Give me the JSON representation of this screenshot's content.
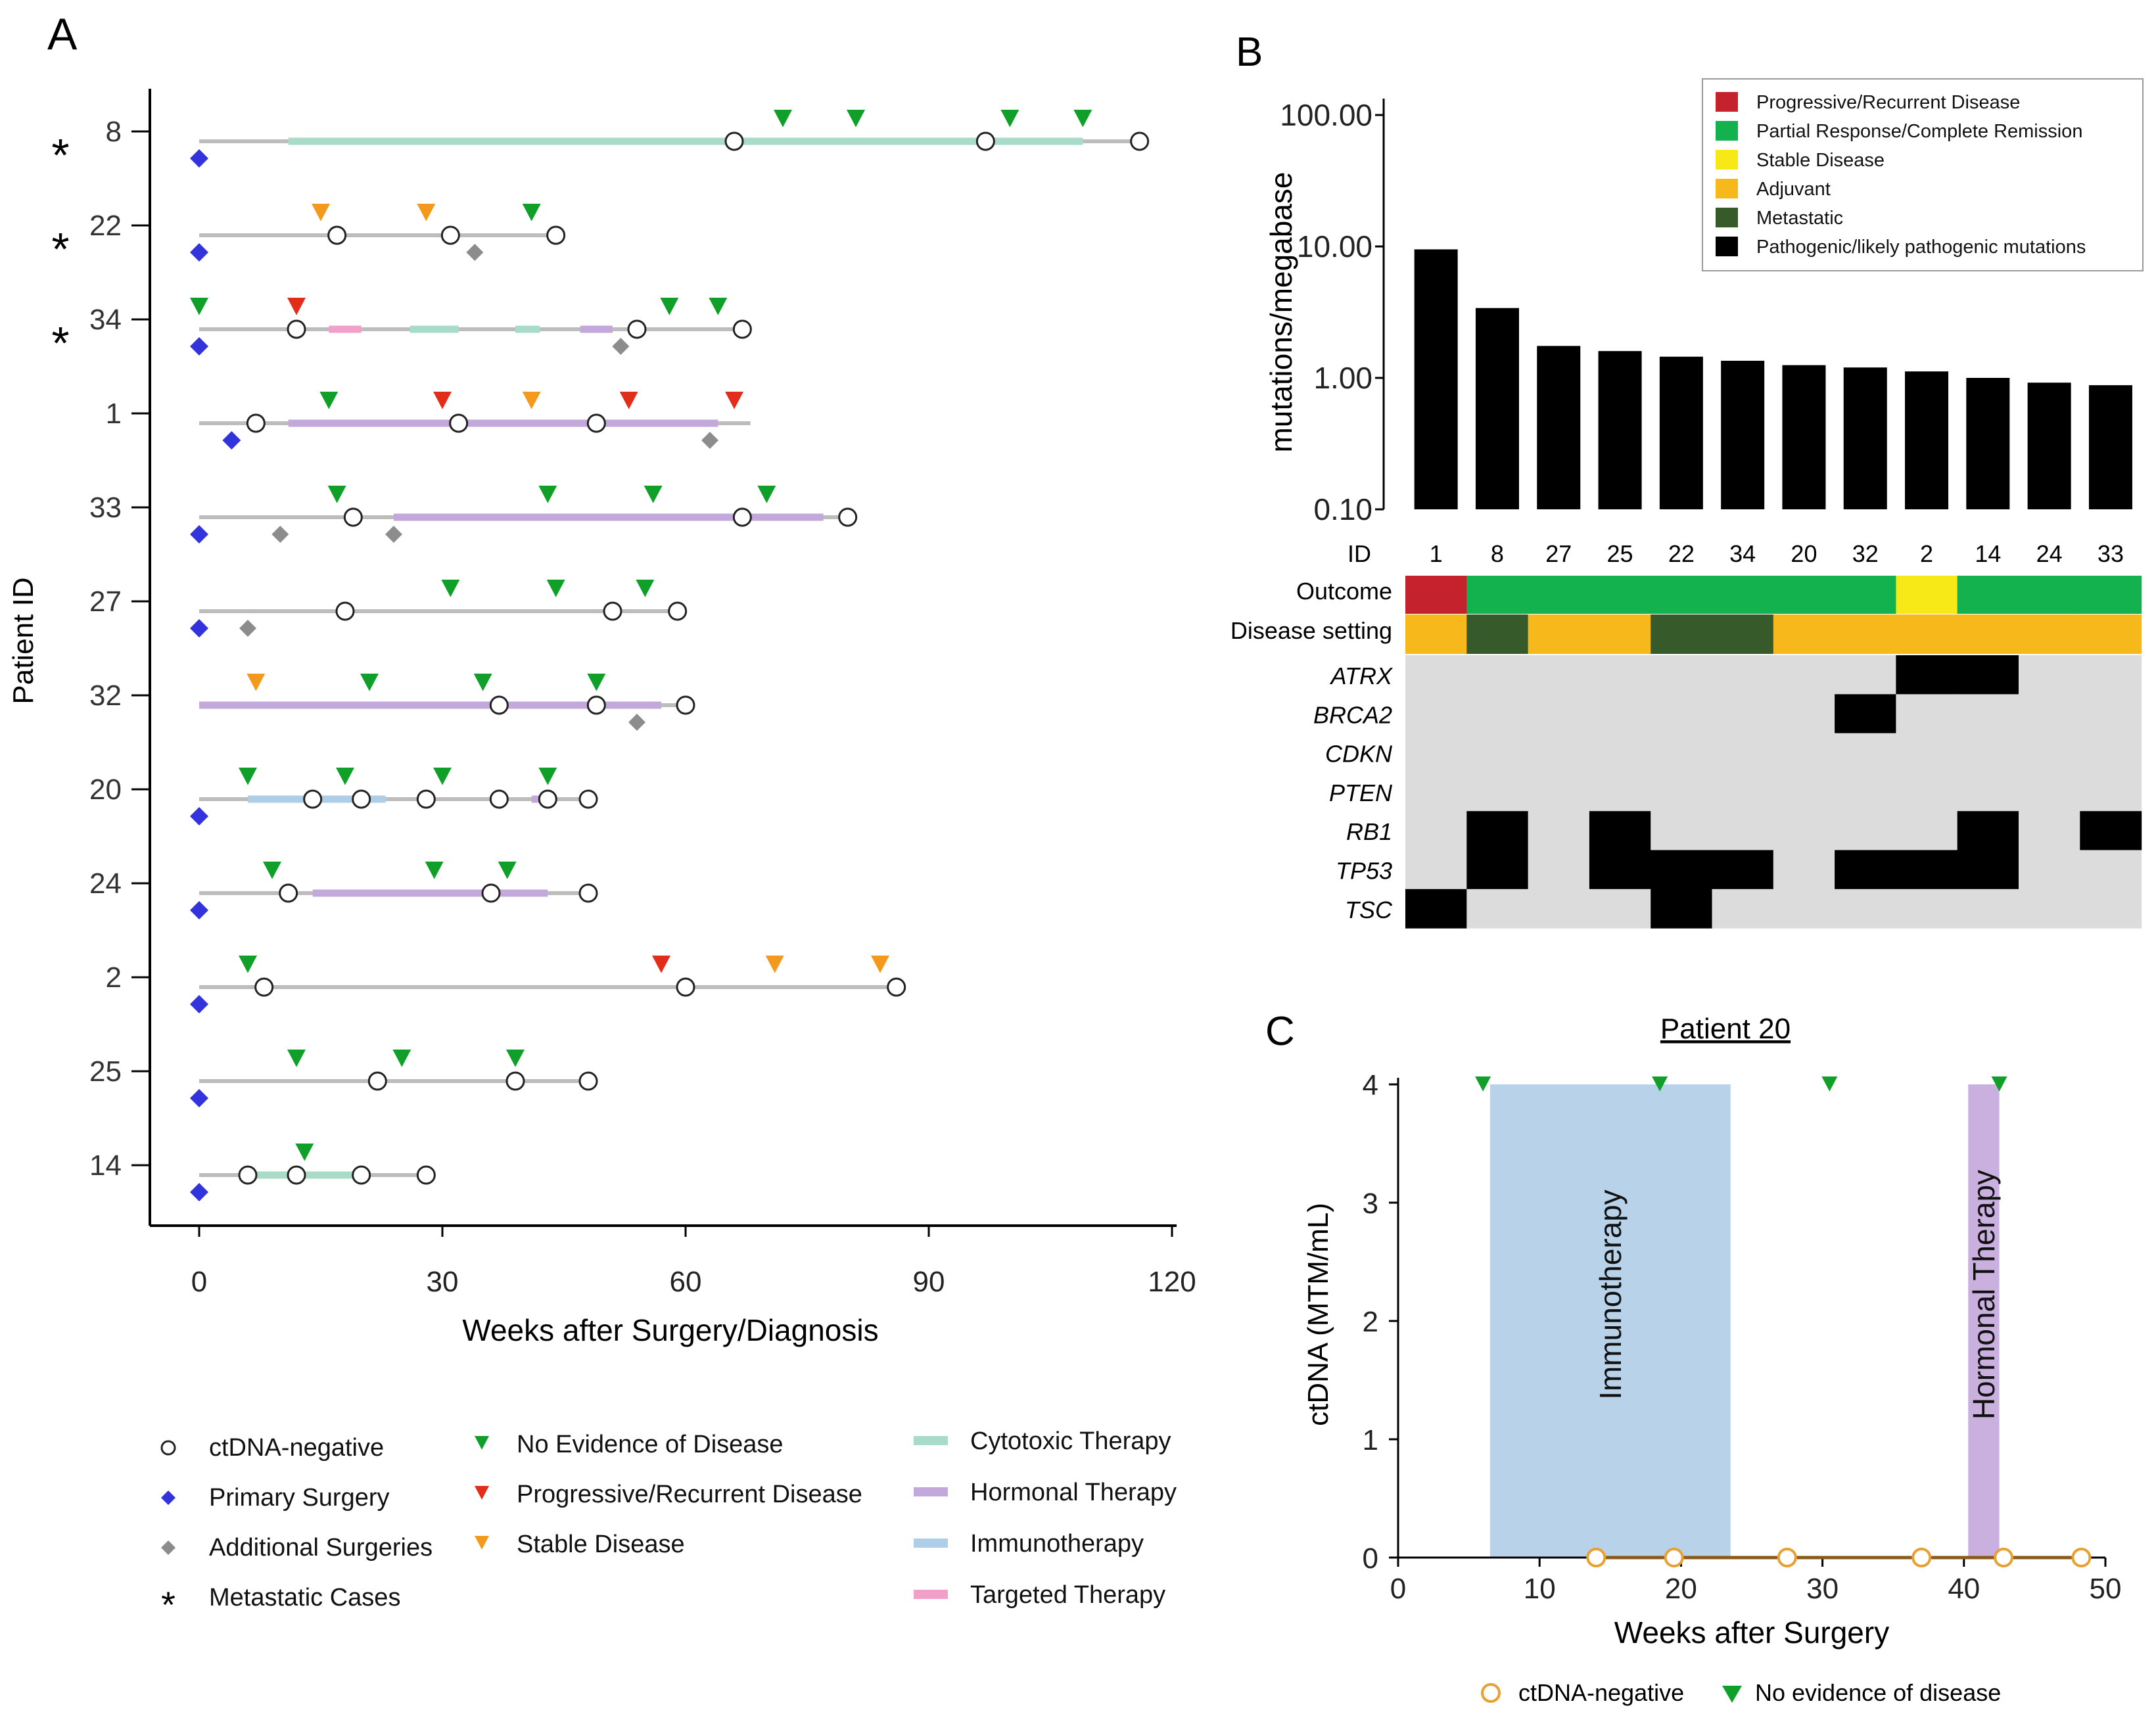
{
  "colors": {
    "ctdna_neg_stroke": "#222222",
    "primary_surgery": "#3333dd",
    "additional_surgery": "#8c8c8c",
    "ned": "#10a02a",
    "progressive": "#e32d1b",
    "stable": "#f39a1e",
    "cytotoxic": "#a8dcc8",
    "hormonal": "#c3a8dc",
    "immuno": "#aecde6",
    "targeted": "#f1a1c9",
    "baseline": "#bdbdbd",
    "outcome_progressive": "#c4222d",
    "outcome_pr_cr": "#13b24f",
    "outcome_stable": "#f7e818",
    "setting_adjuvant": "#f7b81b",
    "setting_metastatic": "#375a2b",
    "heat_empty": "#dcdcdc",
    "heat_filled": "#000000",
    "c_immuno": "#b8d2ea",
    "c_hormonal": "#c9b0de",
    "c_neg": "#e8a030",
    "c_line": "#8b5a18"
  },
  "panelA": {
    "label": "A",
    "ylabel": "Patient ID",
    "xlabel": "Weeks after Surgery/Diagnosis",
    "ticks": [
      "0",
      "30",
      "60",
      "90",
      "120"
    ],
    "xlim": [
      0,
      120
    ],
    "patients": [
      {
        "id": "8",
        "metastatic": true,
        "start": 0,
        "end": 116,
        "bars": [
          {
            "type": "cytotoxic",
            "from": 11,
            "to": 109
          }
        ],
        "neg": [
          66,
          97,
          116
        ],
        "ned": [
          72,
          81,
          100,
          109
        ],
        "prog": [],
        "stable": [],
        "primary": 0,
        "additional": []
      },
      {
        "id": "22",
        "metastatic": true,
        "start": 0,
        "end": 44,
        "bars": [],
        "neg": [
          17,
          31,
          44
        ],
        "ned": [
          41
        ],
        "prog": [],
        "stable": [
          15,
          28
        ],
        "primary": 0,
        "additional": [
          34
        ]
      },
      {
        "id": "34",
        "metastatic": true,
        "start": 0,
        "end": 67,
        "bars": [
          {
            "type": "targeted",
            "from": 16,
            "to": 20
          },
          {
            "type": "cytotoxic",
            "from": 26,
            "to": 32
          },
          {
            "type": "cytotoxic",
            "from": 39,
            "to": 42
          },
          {
            "type": "hormonal",
            "from": 47,
            "to": 51
          }
        ],
        "neg": [
          12,
          54,
          67
        ],
        "ned": [
          0,
          58,
          64
        ],
        "prog": [
          12
        ],
        "stable": [],
        "primary": 0,
        "additional": [
          52
        ]
      },
      {
        "id": "1",
        "metastatic": false,
        "start": 0,
        "end": 68,
        "bars": [
          {
            "type": "hormonal",
            "from": 11,
            "to": 64
          }
        ],
        "neg": [
          7,
          32,
          49
        ],
        "ned": [
          16
        ],
        "prog": [
          30,
          53,
          66
        ],
        "stable": [
          41
        ],
        "primary": 4,
        "additional": [
          63
        ]
      },
      {
        "id": "33",
        "metastatic": false,
        "start": 0,
        "end": 80,
        "bars": [
          {
            "type": "hormonal",
            "from": 24,
            "to": 77
          }
        ],
        "neg": [
          19,
          67,
          80
        ],
        "ned": [
          17,
          43,
          56,
          70
        ],
        "prog": [],
        "stable": [],
        "primary": 0,
        "additional": [
          10,
          24
        ]
      },
      {
        "id": "27",
        "metastatic": false,
        "start": 0,
        "end": 59,
        "bars": [],
        "neg": [
          18,
          51,
          59
        ],
        "ned": [
          31,
          44,
          55
        ],
        "prog": [],
        "stable": [],
        "primary": 0,
        "additional": [
          6
        ]
      },
      {
        "id": "32",
        "metastatic": false,
        "start": 0,
        "end": 60,
        "bars": [
          {
            "type": "hormonal",
            "from": 0,
            "to": 57
          }
        ],
        "neg": [
          37,
          49,
          60
        ],
        "ned": [
          21,
          35,
          49
        ],
        "prog": [],
        "stable": [
          7
        ],
        "primary": null,
        "additional": [
          54
        ]
      },
      {
        "id": "20",
        "metastatic": false,
        "start": 0,
        "end": 48,
        "bars": [
          {
            "type": "immuno",
            "from": 6,
            "to": 23
          },
          {
            "type": "hormonal",
            "from": 41,
            "to": 43
          }
        ],
        "neg": [
          14,
          20,
          28,
          37,
          43,
          48
        ],
        "ned": [
          6,
          18,
          30,
          43
        ],
        "prog": [],
        "stable": [],
        "primary": 0,
        "additional": []
      },
      {
        "id": "24",
        "metastatic": false,
        "start": 0,
        "end": 48,
        "bars": [
          {
            "type": "hormonal",
            "from": 14,
            "to": 43
          }
        ],
        "neg": [
          11,
          36,
          48
        ],
        "ned": [
          9,
          29,
          38
        ],
        "prog": [],
        "stable": [],
        "primary": 0,
        "additional": []
      },
      {
        "id": "2",
        "metastatic": false,
        "start": 0,
        "end": 86,
        "bars": [],
        "neg": [
          8,
          60,
          86
        ],
        "ned": [
          6
        ],
        "prog": [
          57
        ],
        "stable": [
          71,
          84
        ],
        "primary": 0,
        "additional": []
      },
      {
        "id": "25",
        "metastatic": false,
        "start": 0,
        "end": 48,
        "bars": [],
        "neg": [
          22,
          39,
          48
        ],
        "ned": [
          12,
          25,
          39
        ],
        "prog": [],
        "stable": [],
        "primary": 0,
        "additional": []
      },
      {
        "id": "14",
        "metastatic": false,
        "start": 0,
        "end": 28,
        "bars": [
          {
            "type": "cytotoxic",
            "from": 7,
            "to": 19
          }
        ],
        "neg": [
          6,
          12,
          20,
          28
        ],
        "ned": [
          13
        ],
        "prog": [],
        "stable": [],
        "primary": 0,
        "additional": []
      }
    ],
    "legend": {
      "col1": [
        {
          "symbol": "neg",
          "label": "ctDNA-negative"
        },
        {
          "symbol": "primary",
          "label": "Primary Surgery"
        },
        {
          "symbol": "additional",
          "label": "Additional Surgeries"
        },
        {
          "symbol": "star",
          "label": "Metastatic Cases"
        }
      ],
      "col2": [
        {
          "symbol": "ned",
          "label": "No Evidence of Disease"
        },
        {
          "symbol": "prog",
          "label": "Progressive/Recurrent Disease"
        },
        {
          "symbol": "stable",
          "label": "Stable Disease"
        }
      ],
      "col3": [
        {
          "symbol": "cytotoxic",
          "label": "Cytotoxic Therapy"
        },
        {
          "symbol": "hormonal",
          "label": "Hormonal Therapy"
        },
        {
          "symbol": "immuno",
          "label": "Immunotherapy"
        },
        {
          "symbol": "targeted",
          "label": "Targeted Therapy"
        }
      ]
    }
  },
  "panelB": {
    "label": "B",
    "ylabel": "mutations/megabase",
    "yticks": [
      "100.00",
      "10.00",
      "1.00",
      "0.10"
    ],
    "id_header": "ID",
    "ids": [
      "1",
      "8",
      "27",
      "25",
      "22",
      "34",
      "20",
      "32",
      "2",
      "14",
      "24",
      "33"
    ],
    "tmb": [
      9.5,
      3.4,
      1.75,
      1.6,
      1.45,
      1.35,
      1.25,
      1.2,
      1.12,
      1.0,
      0.92,
      0.88
    ],
    "row_labels": {
      "outcome": "Outcome",
      "setting": "Disease setting"
    },
    "outcome": [
      "progressive",
      "pr_cr",
      "pr_cr",
      "pr_cr",
      "pr_cr",
      "pr_cr",
      "pr_cr",
      "pr_cr",
      "stable",
      "pr_cr",
      "pr_cr",
      "pr_cr"
    ],
    "setting": [
      "adjuvant",
      "metastatic",
      "adjuvant",
      "adjuvant",
      "metastatic",
      "metastatic",
      "adjuvant",
      "adjuvant",
      "adjuvant",
      "adjuvant",
      "adjuvant",
      "adjuvant"
    ],
    "genes": [
      "ATRX",
      "BRCA2",
      "CDKN",
      "PTEN",
      "RB1",
      "TP53",
      "TSC"
    ],
    "mutations": [
      [
        0,
        0,
        0,
        0,
        0,
        0,
        0,
        0,
        1,
        1,
        0,
        0
      ],
      [
        0,
        0,
        0,
        0,
        0,
        0,
        0,
        1,
        0,
        0,
        0,
        0
      ],
      [
        0,
        0,
        0,
        0,
        0,
        0,
        0,
        0,
        0,
        0,
        0,
        0
      ],
      [
        0,
        0,
        0,
        0,
        0,
        0,
        0,
        0,
        0,
        0,
        0,
        0
      ],
      [
        0,
        1,
        0,
        1,
        0,
        0,
        0,
        0,
        0,
        1,
        0,
        1
      ],
      [
        0,
        1,
        0,
        1,
        1,
        1,
        0,
        1,
        1,
        1,
        0,
        0
      ],
      [
        1,
        0,
        0,
        0,
        1,
        0,
        0,
        0,
        0,
        0,
        0,
        0
      ]
    ],
    "legend": [
      {
        "key": "outcome_progressive",
        "label": "Progressive/Recurrent Disease"
      },
      {
        "key": "outcome_pr_cr",
        "label": "Partial Response/Complete Remission"
      },
      {
        "key": "outcome_stable",
        "label": "Stable Disease"
      },
      {
        "key": "setting_adjuvant",
        "label": "Adjuvant"
      },
      {
        "key": "setting_metastatic",
        "label": "Metastatic"
      },
      {
        "key": "heat_filled",
        "label": "Pathogenic/likely pathogenic mutations"
      }
    ]
  },
  "panelC": {
    "label": "C",
    "title": "Patient 20",
    "ylabel": "ctDNA  (MTM/mL)",
    "xlabel": "Weeks after Surgery",
    "xticks": [
      "0",
      "10",
      "20",
      "30",
      "40",
      "50"
    ],
    "yticks": [
      "0",
      "1",
      "2",
      "3",
      "4"
    ],
    "xlim": [
      0,
      50
    ],
    "ylim": [
      0,
      4
    ],
    "therapies": [
      {
        "type": "immuno",
        "label": "Immunotherapy",
        "from": 6.5,
        "to": 23.5
      },
      {
        "type": "hormonal",
        "label": "Hormonal Therapy",
        "from": 40.3,
        "to": 42.5
      }
    ],
    "ned_weeks": [
      6,
      18.5,
      30.5,
      42.5
    ],
    "neg_weeks": [
      14,
      19.5,
      27.5,
      37,
      42.8,
      48.3
    ],
    "legend": {
      "neg": "ctDNA-negative",
      "ned": "No evidence of disease"
    }
  }
}
